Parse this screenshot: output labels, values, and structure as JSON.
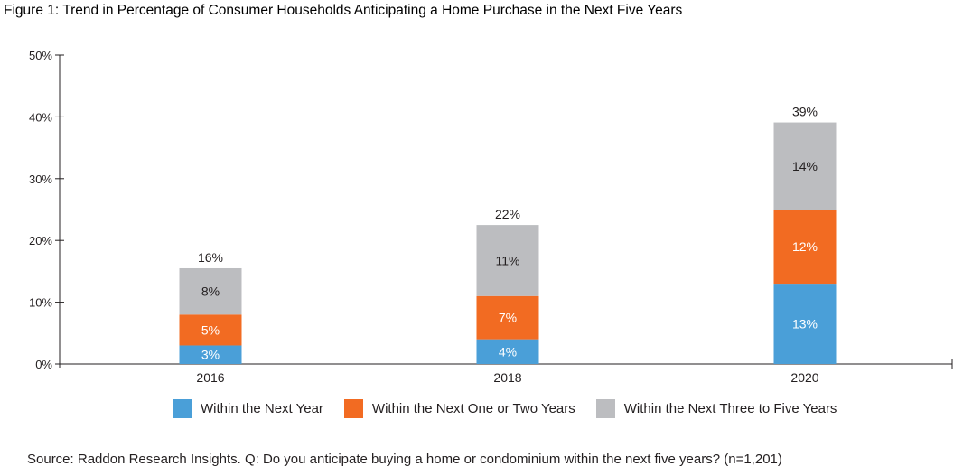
{
  "title": "Figure 1: Trend in Percentage of Consumer Households Anticipating a Home Purchase in the Next Five Years",
  "source": "Source: Raddon Research Insights. Q: Do you anticipate buying a home or condominium within the next five years? (n=1,201)",
  "colors": {
    "within_next_year": "#4a9fd8",
    "one_or_two_years": "#f26b22",
    "three_to_five_years": "#bcbdc0",
    "axis": "#231f20",
    "segment_label": "#ffffff",
    "inner_label_gray": "#231f20"
  },
  "chart_data": {
    "type": "bar",
    "stacked": true,
    "categories": [
      "2016",
      "2018",
      "2020"
    ],
    "series": [
      {
        "name": "Within the Next Year",
        "values": [
          3,
          4,
          13
        ],
        "labels": [
          "3%",
          "4%",
          "13%"
        ]
      },
      {
        "name": "Within the Next One or Two Years",
        "values": [
          5,
          7,
          12
        ],
        "labels": [
          "5%",
          "7%",
          "12%"
        ]
      },
      {
        "name": "Within the Next Three to Five Years",
        "values": [
          8,
          11,
          14
        ],
        "labels": [
          "8%",
          "11%",
          "14%"
        ]
      }
    ],
    "totals": [
      15.5,
      22.5,
      39.1
    ],
    "total_labels": [
      "16%",
      "22%",
      "39%"
    ],
    "ylim": [
      0,
      50
    ],
    "yticks": [
      0,
      10,
      20,
      30,
      40,
      50
    ],
    "ytick_labels": [
      "0%",
      "10%",
      "20%",
      "30%",
      "40%",
      "50%"
    ],
    "grid": false,
    "legend_position": "bottom"
  }
}
